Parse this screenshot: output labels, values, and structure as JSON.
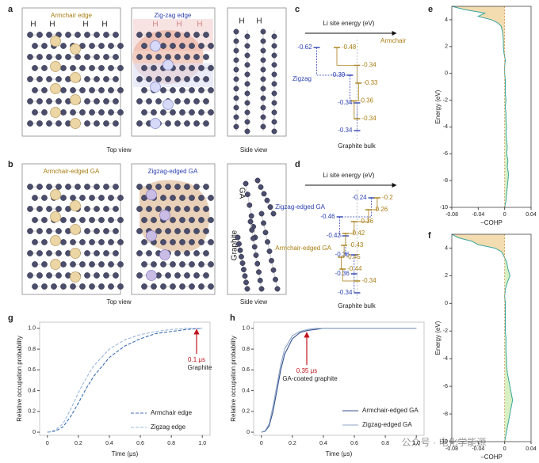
{
  "figure": {
    "a": {
      "label": "a",
      "titles": [
        "Armchair edge",
        "Zig-zag edge"
      ],
      "h_labels": [
        [
          "H",
          "H",
          "H",
          "H"
        ],
        [
          "H",
          "H",
          "H"
        ],
        [
          "H",
          "H"
        ]
      ],
      "views": [
        "Top view",
        "Side view"
      ]
    },
    "b": {
      "label": "b",
      "titles": [
        "Armchair-edged GA",
        "Zigzag-edged GA"
      ],
      "side_labels": [
        "GA",
        "Graphite"
      ],
      "views": [
        "Top view",
        "Side view"
      ]
    },
    "watermark": "公众号 · 电化学能源"
  },
  "chart_data": [
    {
      "type": "levels",
      "label": "c",
      "axis_title": "Li site energy (eV)",
      "bottom_label": "Graphite bulk",
      "xlim": [
        -0.7,
        -0.15
      ],
      "series": [
        {
          "name": "Zigzag",
          "color": "#2b3fb0",
          "values": [
            -0.62,
            -0.39,
            -0.34,
            -0.34
          ]
        },
        {
          "name": "Armchair",
          "color": "#a87d12",
          "values": [
            -0.48,
            -0.34,
            -0.33,
            -0.36,
            -0.34
          ]
        }
      ]
    },
    {
      "type": "levels",
      "label": "d",
      "axis_title": "Li site energy (eV)",
      "bottom_label": "Graphite bulk",
      "xlim": [
        -0.7,
        -0.15
      ],
      "series": [
        {
          "name": "Zigzag-edged GA",
          "color": "#2b3fb0",
          "values": [
            -0.24,
            -0.46,
            -0.42,
            -0.36,
            -0.36,
            -0.34
          ]
        },
        {
          "name": "Armchair-edged GA",
          "color": "#a87d12",
          "values": [
            -0.2,
            -0.26,
            -0.36,
            -0.42,
            -0.43,
            -0.45,
            -0.44,
            -0.34
          ]
        }
      ]
    },
    {
      "type": "cohp",
      "label": "e",
      "xlabel": "−COHP",
      "ylabel": "Energy (eV)",
      "color": "#3aa6a0",
      "negative_fill": "#f3dcb0",
      "positive_fill": "#d8f0c2",
      "xlim": [
        -0.08,
        0.04
      ],
      "xticks": [
        -0.08,
        -0.04,
        0,
        0.04
      ],
      "ylim": [
        -10,
        5
      ],
      "yticks": [
        -10,
        -8,
        -6,
        -4,
        -2,
        0,
        2,
        4
      ],
      "energy": [
        5,
        4.75,
        4.5,
        4.25,
        4,
        3.75,
        3.5,
        3,
        2.5,
        2,
        1.5,
        1,
        0.5,
        0,
        -0.5,
        -1,
        -1.5,
        -2,
        -2.5,
        -3,
        -3.5,
        -4,
        -4.5,
        -5,
        -5.5,
        -6,
        -6.5,
        -7,
        -7.5,
        -8,
        -8.5,
        -9,
        -9.5,
        -10
      ],
      "values": [
        -0.08,
        -0.06,
        -0.03,
        -0.04,
        -0.02,
        -0.01,
        -0.005,
        -0.003,
        -0.002,
        -0.002,
        -0.001,
        0.001,
        0,
        0,
        0.001,
        0.001,
        0.001,
        0.002,
        0.001,
        0.002,
        0.002,
        0.003,
        0.002,
        0.003,
        0.004,
        0.003,
        0.005,
        0.004,
        0.006,
        0.005,
        0.004,
        0.003,
        0.002,
        0
      ]
    },
    {
      "type": "cohp",
      "label": "f",
      "xlabel": "−COHP",
      "ylabel": "Energy (eV)",
      "color": "#3aa6a0",
      "negative_fill": "#f3dcb0",
      "positive_fill": "#d8f0c2",
      "xlim": [
        -0.08,
        0.04
      ],
      "xticks": [
        -0.08,
        -0.04,
        0,
        0.04
      ],
      "ylim": [
        -10,
        5
      ],
      "yticks": [
        -10,
        -8,
        -6,
        -4,
        -2,
        0,
        2,
        4
      ],
      "energy": [
        5,
        4.75,
        4.5,
        4.25,
        4,
        3.75,
        3.5,
        3,
        2.5,
        2,
        1.5,
        1,
        0.5,
        0,
        -0.5,
        -1,
        -1.5,
        -2,
        -2.5,
        -3,
        -3.5,
        -4,
        -4.5,
        -5,
        -5.5,
        -6,
        -6.5,
        -7,
        -7.5,
        -8,
        -8.5,
        -9,
        -9.5,
        -10
      ],
      "values": [
        -0.08,
        -0.07,
        -0.05,
        -0.04,
        -0.015,
        -0.005,
        -0.002,
        0.003,
        0.005,
        0.008,
        0.004,
        0.001,
        0,
        0.001,
        0.001,
        0.001,
        0.001,
        0.001,
        0.002,
        0.002,
        0.002,
        0.003,
        0.003,
        0.004,
        0.006,
        0.008,
        0.01,
        0.012,
        0.01,
        0.008,
        0.006,
        0.004,
        0.002,
        0
      ]
    },
    {
      "type": "line",
      "label": "g",
      "xlabel": "Time (μs)",
      "ylabel": "Relative occupation probability",
      "annotations": [
        "0.1 μs",
        "Graphite"
      ],
      "xlim": [
        -0.05,
        1.05
      ],
      "xticks": [
        0,
        0.2,
        0.4,
        0.6,
        0.8,
        {
          "value": 1,
          "label": "1.0"
        }
      ],
      "ylim": [
        -0.03,
        1.06
      ],
      "yticks": [
        0,
        0.2,
        0.4,
        0.6,
        0.8,
        {
          "value": 1,
          "label": "1.0"
        }
      ],
      "x": [
        0,
        0.05,
        0.1,
        0.15,
        0.2,
        0.25,
        0.3,
        0.4,
        0.5,
        0.6,
        0.7,
        0.8,
        0.9,
        1.0
      ],
      "series": [
        {
          "name": "Armchair edge",
          "color": "#3d6fb6",
          "dashed": true,
          "values": [
            0,
            0.01,
            0.05,
            0.15,
            0.28,
            0.42,
            0.54,
            0.72,
            0.83,
            0.9,
            0.95,
            0.97,
            0.99,
            1.0
          ]
        },
        {
          "name": "Zigzag edge",
          "color": "#9bb8dc",
          "dashed": true,
          "values": [
            0,
            0.02,
            0.08,
            0.22,
            0.38,
            0.52,
            0.64,
            0.8,
            0.89,
            0.94,
            0.97,
            0.99,
            1.0,
            1.0
          ]
        }
      ]
    },
    {
      "type": "line",
      "label": "h",
      "xlabel": "Time (μs)",
      "ylabel": "Relative occupation probability",
      "annotations": [
        "0.35 μs",
        "GA-coated graphite"
      ],
      "xlim": [
        -0.05,
        1.05
      ],
      "xticks": [
        0,
        0.2,
        0.4,
        0.6,
        0.8,
        {
          "value": 1,
          "label": "1.0"
        }
      ],
      "ylim": [
        -0.03,
        1.06
      ],
      "yticks": [
        0,
        0.2,
        0.4,
        0.6,
        0.8,
        {
          "value": 1,
          "label": "1.0"
        }
      ],
      "x": [
        0,
        0.025,
        0.05,
        0.075,
        0.1,
        0.125,
        0.15,
        0.2,
        0.25,
        0.3,
        0.35,
        0.4,
        0.5,
        0.6,
        0.8,
        1.0
      ],
      "series": [
        {
          "name": "Armchair-edged GA",
          "color": "#34508f",
          "dashed": false,
          "values": [
            0,
            0.01,
            0.06,
            0.2,
            0.4,
            0.6,
            0.75,
            0.9,
            0.96,
            0.98,
            0.99,
            1.0,
            1.0,
            1.0,
            1.0,
            1.0
          ]
        },
        {
          "name": "Zigzag-edged GA",
          "color": "#8fa6c6",
          "dashed": false,
          "values": [
            0,
            0.015,
            0.08,
            0.25,
            0.45,
            0.65,
            0.8,
            0.93,
            0.97,
            0.99,
            1.0,
            1.0,
            1.0,
            1.0,
            1.0,
            1.0
          ]
        }
      ]
    }
  ]
}
